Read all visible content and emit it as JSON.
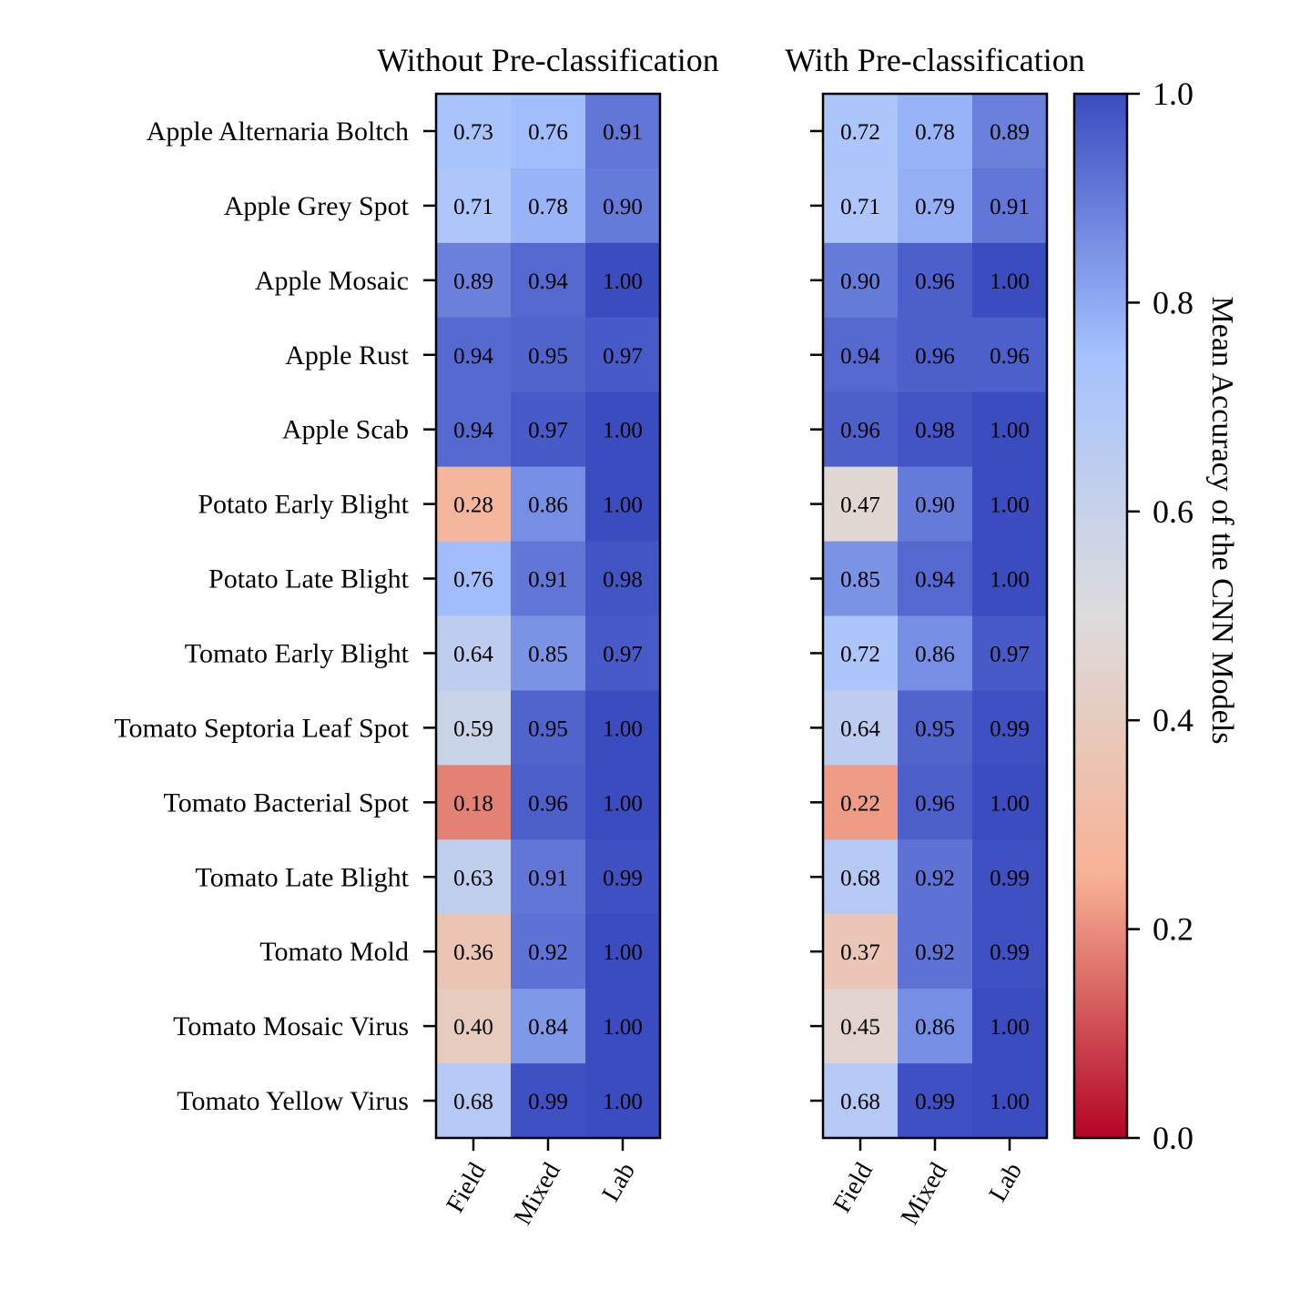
{
  "chart_data": {
    "type": "heatmap",
    "colorbar": {
      "label": "Mean Accuracy of the CNN Models",
      "ticks": [
        "0.0",
        "0.2",
        "0.4",
        "0.6",
        "0.8",
        "1.0"
      ],
      "range": [
        0,
        1
      ],
      "colormap": "coolwarm_r",
      "colors": [
        "#b40426",
        "#f7b194",
        "#dddcdc",
        "#a5c2fe",
        "#3b4cc0"
      ]
    },
    "rows": [
      "Apple Alternaria Boltch",
      "Apple Grey Spot",
      "Apple Mosaic",
      "Apple Rust",
      "Apple Scab",
      "Potato Early Blight",
      "Potato Late Blight",
      "Tomato Early Blight",
      "Tomato Septoria Leaf Spot",
      "Tomato Bacterial Spot",
      "Tomato Late Blight",
      "Tomato Mold",
      "Tomato Mosaic Virus",
      "Tomato Yellow Virus"
    ],
    "columns": [
      "Field",
      "Mixed",
      "Lab"
    ],
    "panels": [
      {
        "title": "Without Pre-classification",
        "values": [
          [
            0.73,
            0.76,
            0.91
          ],
          [
            0.71,
            0.78,
            0.9
          ],
          [
            0.89,
            0.94,
            1.0
          ],
          [
            0.94,
            0.95,
            0.97
          ],
          [
            0.94,
            0.97,
            1.0
          ],
          [
            0.28,
            0.86,
            1.0
          ],
          [
            0.76,
            0.91,
            0.98
          ],
          [
            0.64,
            0.85,
            0.97
          ],
          [
            0.59,
            0.95,
            1.0
          ],
          [
            0.18,
            0.96,
            1.0
          ],
          [
            0.63,
            0.91,
            0.99
          ],
          [
            0.36,
            0.92,
            1.0
          ],
          [
            0.4,
            0.84,
            1.0
          ],
          [
            0.68,
            0.99,
            1.0
          ]
        ]
      },
      {
        "title": "With Pre-classification",
        "values": [
          [
            0.72,
            0.78,
            0.89
          ],
          [
            0.71,
            0.79,
            0.91
          ],
          [
            0.9,
            0.96,
            1.0
          ],
          [
            0.94,
            0.96,
            0.96
          ],
          [
            0.96,
            0.98,
            1.0
          ],
          [
            0.47,
            0.9,
            1.0
          ],
          [
            0.85,
            0.94,
            1.0
          ],
          [
            0.72,
            0.86,
            0.97
          ],
          [
            0.64,
            0.95,
            0.99
          ],
          [
            0.22,
            0.96,
            1.0
          ],
          [
            0.68,
            0.92,
            0.99
          ],
          [
            0.37,
            0.92,
            0.99
          ],
          [
            0.45,
            0.86,
            1.0
          ],
          [
            0.68,
            0.99,
            1.0
          ]
        ]
      }
    ]
  }
}
